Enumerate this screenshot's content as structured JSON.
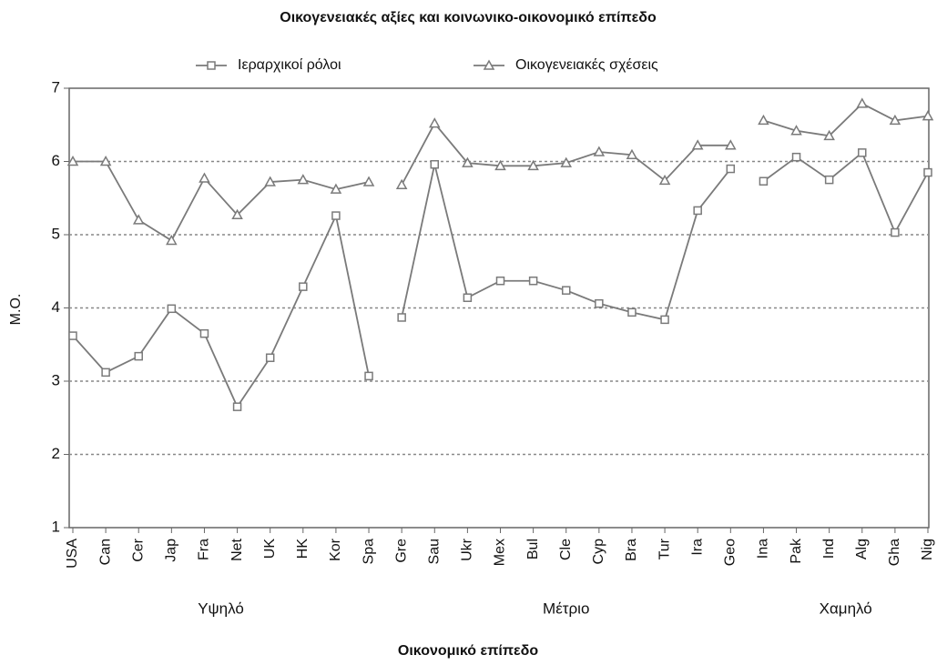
{
  "chart_data": {
    "type": "line",
    "title": "Οικογενειακές αξίες και κοινωνικο-οικονομικό επίπεδο",
    "x_label": "Οικονομικό επίπεδο",
    "y_label": "Μ.Ο.",
    "groups": [
      {
        "name": "Υψηλό",
        "categories": [
          "USA",
          "Can",
          "Cer",
          "Jap",
          "Fra",
          "Net",
          "UK",
          "HK",
          "Kor",
          "Spa"
        ]
      },
      {
        "name": "Μέτριο",
        "categories": [
          "Gre",
          "Sau",
          "Ukr",
          "Mex",
          "Bul",
          "Cle",
          "Cyp",
          "Bra",
          "Tur",
          "Ira",
          "Geo"
        ]
      },
      {
        "name": "Χαμηλό",
        "categories": [
          "Ina",
          "Pak",
          "Ind",
          "Alg",
          "Gha",
          "Nig"
        ]
      }
    ],
    "series": [
      {
        "name": "Ιεραρχικοί ρόλοι",
        "color": "#7a7a7a",
        "marker": "square",
        "values": [
          3.62,
          3.12,
          3.34,
          3.99,
          3.65,
          2.65,
          3.32,
          4.29,
          5.26,
          3.07,
          3.87,
          5.96,
          4.14,
          4.37,
          4.37,
          4.24,
          4.06,
          3.94,
          3.84,
          5.33,
          5.9,
          5.73,
          6.06,
          5.75,
          6.12,
          5.03,
          5.85
        ]
      },
      {
        "name": "Οικογενειακές σχέσεις",
        "color": "#7a7a7a",
        "marker": "triangle",
        "values": [
          6.0,
          6.0,
          5.2,
          4.92,
          5.77,
          5.27,
          5.72,
          5.75,
          5.62,
          5.72,
          5.68,
          6.52,
          5.98,
          5.94,
          5.94,
          5.98,
          6.13,
          6.09,
          5.74,
          6.22,
          6.22,
          6.56,
          6.42,
          6.35,
          6.79,
          6.56,
          6.62
        ]
      }
    ],
    "ylim": [
      1,
      7
    ],
    "yticks": [
      1,
      2,
      3,
      4,
      5,
      6,
      7
    ],
    "grid": true,
    "legend": "top"
  }
}
